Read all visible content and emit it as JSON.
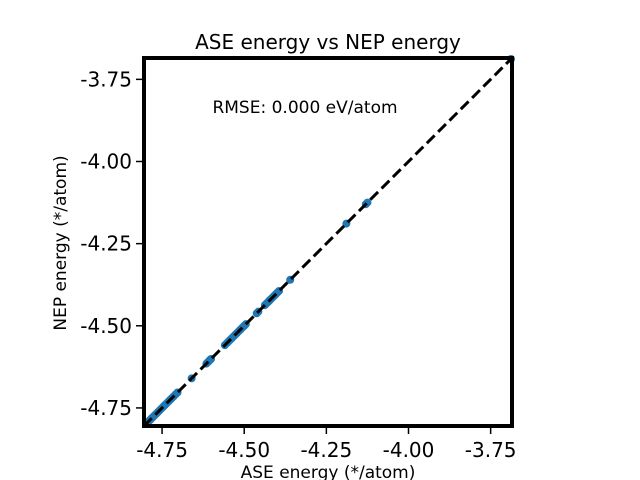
{
  "chart_data": {
    "type": "scatter",
    "title": "ASE energy vs NEP energy",
    "xlabel": "ASE energy (*/atom)",
    "ylabel": "NEP energy (*/atom)",
    "annotation": "RMSE: 0.000 eV/atom",
    "xlim": [
      -4.805,
      -3.685
    ],
    "ylim": [
      -4.805,
      -3.685
    ],
    "xticks": [
      -4.75,
      -4.5,
      -4.25,
      -4.0,
      -3.75
    ],
    "yticks": [
      -4.75,
      -4.5,
      -4.25,
      -4.0,
      -3.75
    ],
    "xtick_labels": [
      "-4.75",
      "-4.50",
      "-4.25",
      "-4.00",
      "-3.75"
    ],
    "ytick_labels": [
      "-4.75",
      "-4.50",
      "-4.25",
      "-4.00",
      "-3.75"
    ],
    "reference_line": {
      "style": "dashed",
      "color": "#000000",
      "from": [
        -4.805,
        -4.805
      ],
      "to": [
        -3.685,
        -3.685
      ]
    },
    "marker_color": "#1f77b4",
    "grid": false,
    "series": [
      {
        "x": [
          -4.795,
          -4.79,
          -4.786,
          -4.782,
          -4.778,
          -4.773,
          -4.768,
          -4.763,
          -4.758,
          -4.752,
          -4.746,
          -4.741,
          -4.736,
          -4.73,
          -4.725,
          -4.72,
          -4.715,
          -4.709,
          -4.703,
          -4.66,
          -4.615,
          -4.612,
          -4.608,
          -4.604,
          -4.601,
          -4.559,
          -4.553,
          -4.548,
          -4.543,
          -4.538,
          -4.532,
          -4.527,
          -4.522,
          -4.516,
          -4.511,
          -4.505,
          -4.5,
          -4.495,
          -4.462,
          -4.457,
          -4.437,
          -4.432,
          -4.427,
          -4.423,
          -4.419,
          -4.414,
          -4.409,
          -4.404,
          -4.399,
          -4.394,
          -4.36,
          -4.189,
          -4.13,
          -4.125,
          -3.688
        ],
        "y": [
          -4.795,
          -4.79,
          -4.786,
          -4.782,
          -4.778,
          -4.773,
          -4.768,
          -4.763,
          -4.758,
          -4.752,
          -4.746,
          -4.741,
          -4.736,
          -4.73,
          -4.725,
          -4.72,
          -4.715,
          -4.709,
          -4.703,
          -4.66,
          -4.615,
          -4.612,
          -4.608,
          -4.604,
          -4.601,
          -4.559,
          -4.553,
          -4.548,
          -4.543,
          -4.538,
          -4.532,
          -4.527,
          -4.522,
          -4.516,
          -4.511,
          -4.505,
          -4.5,
          -4.495,
          -4.462,
          -4.457,
          -4.437,
          -4.432,
          -4.427,
          -4.423,
          -4.419,
          -4.414,
          -4.409,
          -4.404,
          -4.399,
          -4.394,
          -4.36,
          -4.189,
          -4.13,
          -4.125,
          -3.688
        ]
      }
    ]
  }
}
